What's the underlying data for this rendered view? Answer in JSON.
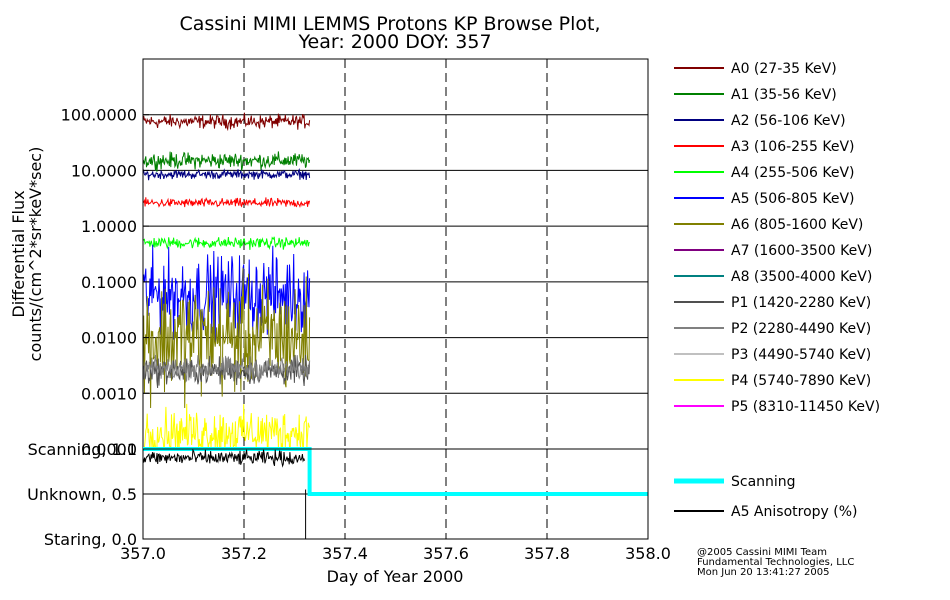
{
  "title": {
    "line1": "Cassini MIMI LEMMS Protons KP Browse Plot,",
    "line2": "Year: 2000 DOY: 357"
  },
  "chart_data": {
    "type": "line",
    "upper_panel": {
      "ylabel_line1": "Differential Flux",
      "ylabel_line2": "counts/(cm^2*sr*keV*sec)",
      "yscale": "log",
      "ylim": [
        0.0001,
        1000
      ],
      "yticks": [
        "100.0000",
        "10.0000",
        "1.0000",
        "0.1000",
        "0.0100",
        "0.0010",
        "0.0001"
      ],
      "ytick_values": [
        100,
        10,
        1,
        0.1,
        0.01,
        0.001,
        0.0001
      ],
      "data_xrange": [
        357.0,
        357.33
      ],
      "series": [
        {
          "name": "A0 (27-35 KeV)",
          "color": "#800000",
          "median": 75,
          "spread": 0.06
        },
        {
          "name": "A1 (35-56 KeV)",
          "color": "#008000",
          "median": 15,
          "spread": 0.07
        },
        {
          "name": "A2 (56-106 KeV)",
          "color": "#000080",
          "median": 8.5,
          "spread": 0.04
        },
        {
          "name": "A3 (106-255 KeV)",
          "color": "#ff0000",
          "median": 2.6,
          "spread": 0.04
        },
        {
          "name": "A4 (255-506 KeV)",
          "color": "#00ff00",
          "median": 0.5,
          "spread": 0.05
        },
        {
          "name": "A5 (506-805 KeV)",
          "color": "#0000ff",
          "median": 0.06,
          "spread": 0.35
        },
        {
          "name": "A6 (805-1600 KeV)",
          "color": "#808000",
          "median": 0.01,
          "spread": 0.5
        },
        {
          "name": "A7 (1600-3500 KeV)",
          "color": "#800080",
          "median": null,
          "spread": 0
        },
        {
          "name": "A8 (3500-4000 KeV)",
          "color": "#008080",
          "median": null,
          "spread": 0
        },
        {
          "name": "P1 (1420-2280 KeV)",
          "color": "#505050",
          "median": 0.0025,
          "spread": 0.12
        },
        {
          "name": "P2 (2280-4490 KeV)",
          "color": "#808080",
          "median": 0.0028,
          "spread": 0.1
        },
        {
          "name": "P3 (4490-5740 KeV)",
          "color": "#c0c0c0",
          "median": null,
          "spread": 0
        },
        {
          "name": "P4 (5740-7890 KeV)",
          "color": "#ffff00",
          "median": 0.0002,
          "spread": 0.2
        },
        {
          "name": "P5 (8310-11450 KeV)",
          "color": "#ff00ff",
          "median": null,
          "spread": 0
        }
      ]
    },
    "lower_panel": {
      "yticks": [
        "Scanning, 1.0",
        "Unknown, 0.5",
        "Staring, 0.0"
      ],
      "ytick_values": [
        1.0,
        0.5,
        0.0
      ],
      "ylim": [
        0.0,
        1.0
      ],
      "series": [
        {
          "name": "Scanning",
          "color": "#00ffff",
          "points": [
            [
              357.0,
              1.0
            ],
            [
              357.33,
              1.0
            ],
            [
              357.33,
              0.5
            ],
            [
              358.0,
              0.5
            ]
          ]
        },
        {
          "name": "A5 Anisotropy (%)",
          "color": "#000000",
          "median": 0.9,
          "spread": 0.06,
          "xrange": [
            357.0,
            357.32
          ]
        }
      ]
    },
    "x": {
      "xlabel": "Day of Year 2000",
      "xlim": [
        357.0,
        358.0
      ],
      "xticks": [
        "357.0",
        "357.2",
        "357.4",
        "357.6",
        "357.8",
        "358.0"
      ],
      "xtick_values": [
        357.0,
        357.2,
        357.4,
        357.6,
        357.8,
        358.0
      ]
    },
    "grid": true,
    "legend_placement": "right"
  },
  "credit": {
    "line1": "@2005 Cassini MIMI Team",
    "line2": "Fundamental Technologies, LLC",
    "line3": "Mon Jun 20 13:41:27 2005"
  }
}
